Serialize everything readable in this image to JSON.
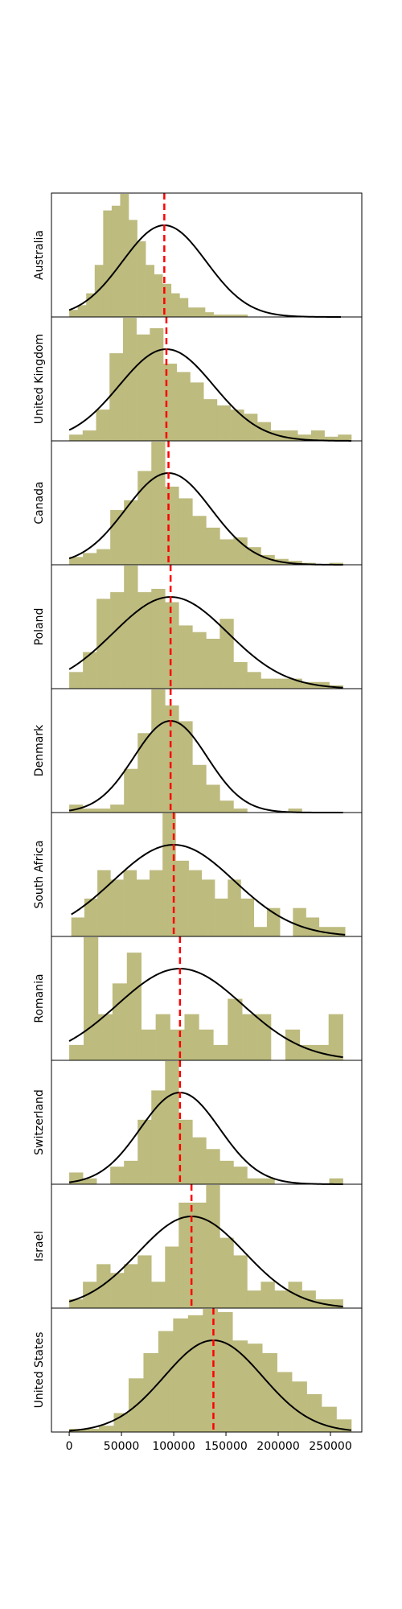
{
  "chart_data": {
    "type": "histogram",
    "xlim": [
      -17000,
      280000
    ],
    "x_ticks": [
      0,
      50000,
      100000,
      150000,
      200000,
      250000
    ],
    "x_tick_labels": [
      "0",
      "50000",
      "100000",
      "150000",
      "200000",
      "250000"
    ],
    "colors": {
      "bars": "#bdbb7e",
      "fit_line": "#000000",
      "mean_line": "#ff0000"
    },
    "panels": [
      {
        "label": "Australia",
        "bin_start": 0,
        "bin_end": 260000,
        "counts": [
          3,
          5,
          10,
          22,
          45,
          47,
          52,
          41,
          32,
          22,
          18,
          14,
          10,
          8,
          4,
          4,
          2,
          1,
          1,
          1,
          1,
          0,
          0,
          0,
          0,
          0,
          0,
          0,
          0,
          0,
          0,
          0
        ],
        "mean": 91000,
        "std": 40000
      },
      {
        "label": "United Kingdom",
        "bin_start": 0,
        "bin_end": 270000,
        "counts": [
          3,
          5,
          15,
          42,
          59,
          51,
          54,
          37,
          33,
          28,
          20,
          17,
          15,
          13,
          9,
          5,
          5,
          3,
          5,
          2,
          3
        ],
        "mean": 93000,
        "std": 45000
      },
      {
        "label": "Canada",
        "bin_start": 0,
        "bin_end": 262000,
        "counts": [
          4,
          6,
          8,
          28,
          33,
          48,
          63,
          40,
          34,
          25,
          19,
          13,
          14,
          9,
          5,
          3,
          2,
          1,
          0,
          1
        ],
        "mean": 95000,
        "std": 41000
      },
      {
        "label": "Poland",
        "bin_start": 0,
        "bin_end": 262000,
        "counts": [
          5,
          11,
          27,
          29,
          37,
          29,
          30,
          26,
          19,
          17,
          15,
          21,
          8,
          5,
          3,
          3,
          3,
          2,
          2,
          1
        ],
        "mean": 97000,
        "std": 55000
      },
      {
        "label": "Denmark",
        "bin_start": 0,
        "bin_end": 262000,
        "counts": [
          2,
          1,
          1,
          2,
          11,
          20,
          31,
          27,
          23,
          12,
          7,
          3,
          1,
          0,
          0,
          0,
          1,
          0,
          0,
          0
        ],
        "mean": 97000,
        "std": 35000
      },
      {
        "label": "South Africa",
        "bin_start": 2000,
        "bin_end": 264000,
        "counts": [
          2,
          4,
          7,
          6,
          7,
          6,
          7,
          13,
          8,
          7,
          6,
          4,
          6,
          4,
          1,
          3,
          0,
          3,
          2,
          1,
          1
        ],
        "mean": 100000,
        "std": 58000
      },
      {
        "label": "Romania",
        "bin_start": 0,
        "bin_end": 262000,
        "counts": [
          1,
          8,
          3,
          5,
          7,
          2,
          3,
          2,
          3,
          2,
          1,
          4,
          3,
          3,
          0,
          2,
          1,
          1,
          3
        ],
        "mean": 106000,
        "std": 60000
      },
      {
        "label": "Switzerland",
        "bin_start": 0,
        "bin_end": 262000,
        "counts": [
          2,
          1,
          0,
          3,
          4,
          11,
          16,
          21,
          11,
          8,
          6,
          4,
          3,
          1,
          1,
          0,
          0,
          0,
          0,
          1
        ],
        "mean": 106000,
        "std": 38000
      },
      {
        "label": "Israel",
        "bin_start": 0,
        "bin_end": 262000,
        "counts": [
          1,
          3,
          5,
          4,
          5,
          6,
          3,
          7,
          12,
          12,
          14,
          8,
          6,
          2,
          3,
          2,
          3,
          2,
          1,
          1
        ],
        "mean": 117000,
        "std": 51000
      },
      {
        "label": "United States",
        "bin_start": 0,
        "bin_end": 270000,
        "counts": [
          1,
          1,
          2,
          6,
          17,
          25,
          32,
          36,
          37,
          39,
          38,
          29,
          28,
          25,
          19,
          16,
          12,
          8,
          4
        ],
        "mean": 138000,
        "std": 47000
      }
    ]
  }
}
